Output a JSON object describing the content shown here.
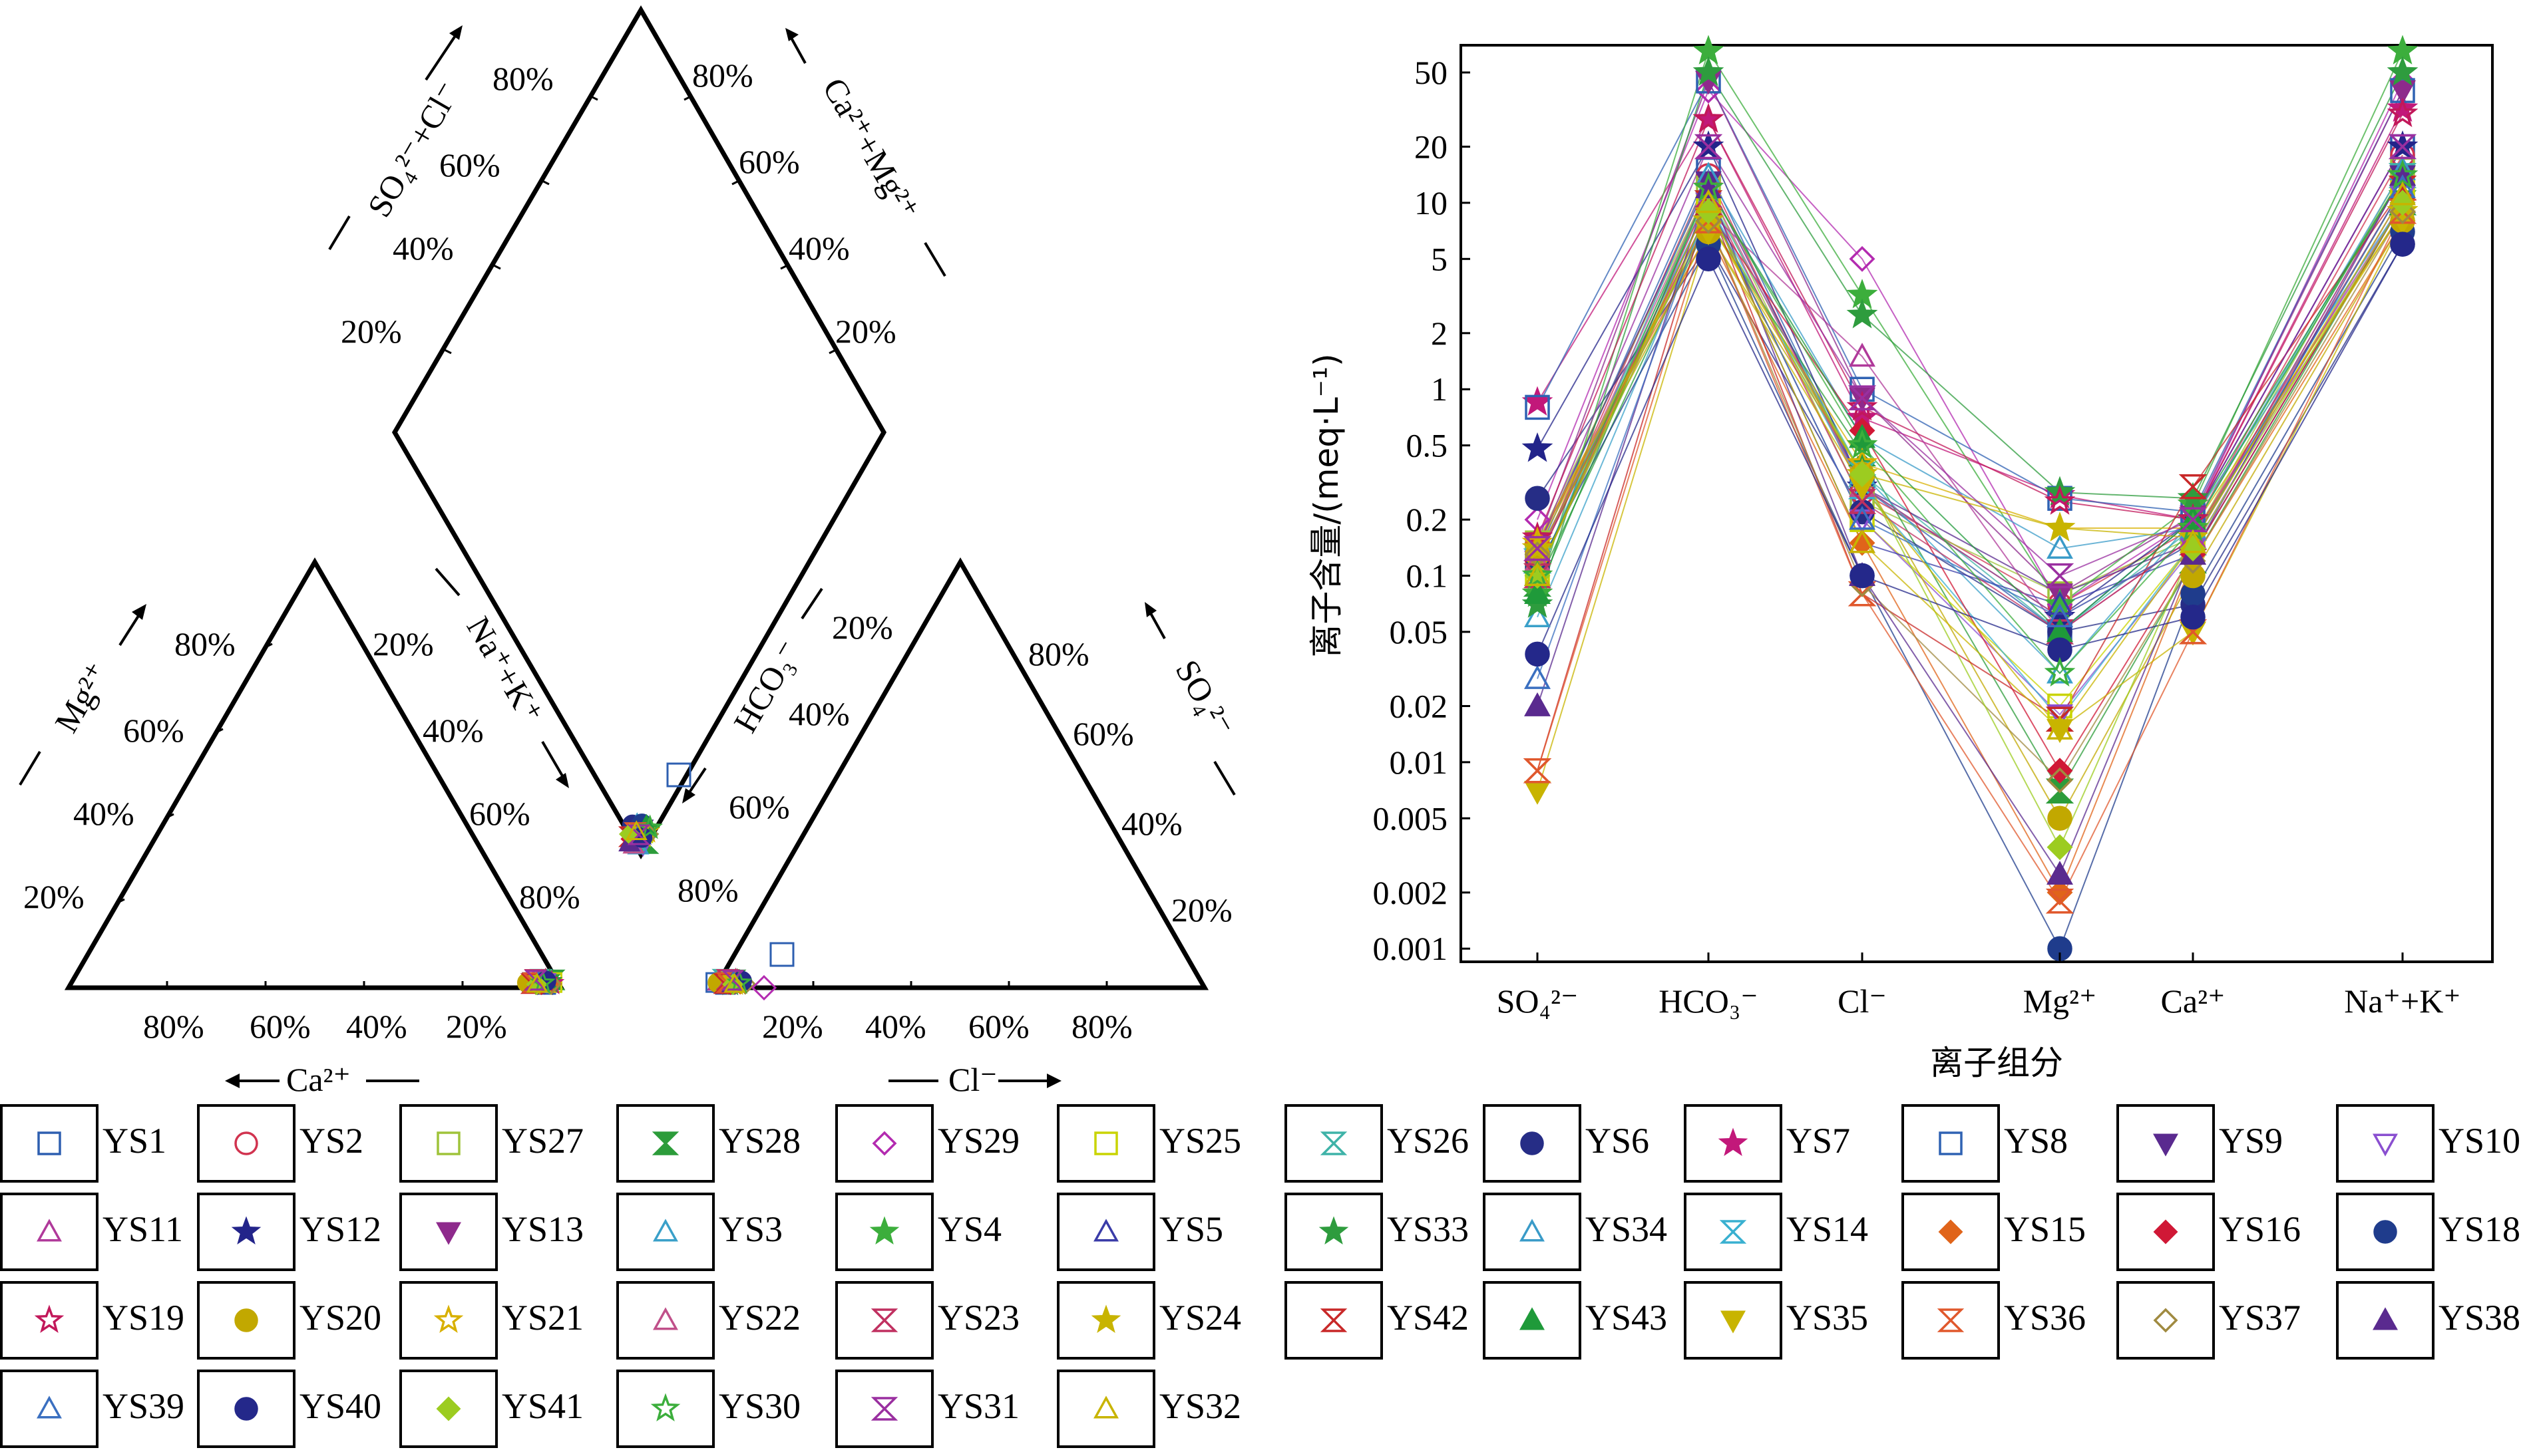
{
  "piper": {
    "diamond_left_label": "SO₄²⁻+Cl⁻",
    "diamond_right_label": "Ca²⁺+Mg²⁺",
    "left_axis_label": "Mg²⁺",
    "left_bottom_label": "Ca²⁺",
    "nak_label": "Na⁺+K⁺",
    "hco3_label": "HCO₃⁻",
    "right_axis_label": "SO₄²⁻",
    "right_bottom_label": "Cl⁻",
    "pct_80": "80%",
    "pct_60": "60%",
    "pct_40": "40%",
    "pct_20": "20%"
  },
  "chart_data": {
    "type": "line",
    "title": "",
    "xlabel": "离子组分",
    "ylabel": "离子含量/(meq·L⁻¹)",
    "y_scale": "log",
    "ylim": [
      0.001,
      70
    ],
    "y_ticks": [
      "50",
      "20",
      "10",
      "5",
      "2",
      "1",
      "0.5",
      "0.2",
      "0.1",
      "0.05",
      "0.02",
      "0.01",
      "0.005",
      "0.002",
      "0.001"
    ],
    "categories": [
      "SO₄²⁻",
      "HCO₃⁻",
      "Cl⁻",
      "Mg²⁺",
      "Ca²⁺",
      "Na⁺+K⁺"
    ],
    "grid": false,
    "series": [
      {
        "name": "YS1",
        "values": [
          0.13,
          15,
          0.3,
          0.05,
          0.2,
          20
        ]
      },
      {
        "name": "YS2",
        "values": [
          0.12,
          14,
          0.28,
          0.07,
          0.18,
          18
        ]
      },
      {
        "name": "YS27",
        "values": [
          0.15,
          12,
          0.25,
          0.08,
          0.16,
          15
        ]
      },
      {
        "name": "YS28",
        "values": [
          0.09,
          8,
          0.45,
          0.007,
          0.12,
          10
        ]
      },
      {
        "name": "YS29",
        "values": [
          0.2,
          40,
          5,
          0.07,
          0.2,
          45
        ]
      },
      {
        "name": "YS25",
        "values": [
          0.1,
          10,
          0.2,
          0.02,
          0.15,
          12
        ]
      },
      {
        "name": "YS26",
        "values": [
          0.12,
          11,
          0.35,
          0.05,
          0.18,
          14
        ]
      },
      {
        "name": "YS6",
        "values": [
          0.26,
          6,
          0.22,
          0.05,
          0.07,
          6
        ]
      },
      {
        "name": "YS7",
        "values": [
          0.85,
          28,
          0.7,
          0.27,
          0.2,
          32
        ]
      },
      {
        "name": "YS8",
        "values": [
          0.8,
          45,
          1,
          0.26,
          0.22,
          40
        ]
      },
      {
        "name": "YS9",
        "values": [
          0.14,
          13,
          0.3,
          0.08,
          0.15,
          14
        ]
      },
      {
        "name": "YS10",
        "values": [
          0.12,
          10,
          0.2,
          0.018,
          0.14,
          11
        ]
      },
      {
        "name": "YS11",
        "values": [
          0.1,
          9,
          1.5,
          0.05,
          0.16,
          10
        ]
      },
      {
        "name": "YS12",
        "values": [
          0.48,
          20,
          0.3,
          0.06,
          0.2,
          20
        ]
      },
      {
        "name": "YS13",
        "values": [
          0.15,
          45,
          0.9,
          0.08,
          0.21,
          40
        ]
      },
      {
        "name": "YS3",
        "values": [
          0.06,
          9,
          0.35,
          0.03,
          0.2,
          10
        ]
      },
      {
        "name": "YS4",
        "values": [
          0.08,
          65,
          3.2,
          0.07,
          0.24,
          65
        ]
      },
      {
        "name": "YS5",
        "values": [
          0.1,
          10,
          0.15,
          0.07,
          0.13,
          10
        ]
      },
      {
        "name": "YS33",
        "values": [
          0.07,
          50,
          2.5,
          0.28,
          0.26,
          50
        ]
      },
      {
        "name": "YS34",
        "values": [
          0.1,
          14,
          0.55,
          0.14,
          0.18,
          15
        ]
      },
      {
        "name": "YS14",
        "values": [
          0.12,
          10,
          0.3,
          0.017,
          0.15,
          12
        ]
      },
      {
        "name": "YS15",
        "values": [
          0.15,
          7,
          0.15,
          0.002,
          0.12,
          8
        ]
      },
      {
        "name": "YS16",
        "values": [
          0.12,
          9,
          0.6,
          0.009,
          0.13,
          10
        ]
      },
      {
        "name": "YS18",
        "values": [
          0.11,
          6,
          0.1,
          0.001,
          0.08,
          7
        ]
      },
      {
        "name": "YS19",
        "values": [
          0.16,
          28,
          0.8,
          0.25,
          0.2,
          30
        ]
      },
      {
        "name": "YS20",
        "values": [
          0.13,
          7,
          0.35,
          0.005,
          0.1,
          8
        ]
      },
      {
        "name": "YS21",
        "values": [
          0.15,
          8,
          0.4,
          0.18,
          0.18,
          9
        ]
      },
      {
        "name": "YS22",
        "values": [
          0.12,
          12,
          0.3,
          0.06,
          0.15,
          14
        ]
      },
      {
        "name": "YS23",
        "values": [
          0.1,
          11,
          0.25,
          0.05,
          0.16,
          12
        ]
      },
      {
        "name": "YS24",
        "values": [
          0.14,
          8,
          0.35,
          0.18,
          0.16,
          9
        ]
      },
      {
        "name": "YS42",
        "values": [
          0.009,
          10,
          0.08,
          0.017,
          0.3,
          12
        ]
      },
      {
        "name": "YS43",
        "values": [
          0.08,
          12,
          0.55,
          0.05,
          0.2,
          14
        ]
      },
      {
        "name": "YS35",
        "values": [
          0.007,
          7,
          0.3,
          0.015,
          0.05,
          8
        ]
      },
      {
        "name": "YS36",
        "values": [
          0.009,
          8,
          0.08,
          0.0018,
          0.05,
          9
        ]
      },
      {
        "name": "YS37",
        "values": [
          0.13,
          8,
          0.09,
          0.008,
          0.12,
          9
        ]
      },
      {
        "name": "YS38",
        "values": [
          0.02,
          12,
          0.1,
          0.0025,
          0.13,
          14
        ]
      },
      {
        "name": "YS39",
        "values": [
          0.028,
          10,
          0.2,
          0.06,
          0.15,
          12
        ]
      },
      {
        "name": "YS40",
        "values": [
          0.038,
          5,
          0.1,
          0.04,
          0.06,
          6
        ]
      },
      {
        "name": "YS41",
        "values": [
          0.1,
          9,
          0.35,
          0.0035,
          0.14,
          10
        ]
      },
      {
        "name": "YS30",
        "values": [
          0.1,
          12,
          0.5,
          0.03,
          0.18,
          14
        ]
      },
      {
        "name": "YS31",
        "values": [
          0.14,
          20,
          0.9,
          0.1,
          0.2,
          20
        ]
      },
      {
        "name": "YS32",
        "values": [
          0.1,
          10,
          0.15,
          0.015,
          0.15,
          11
        ]
      }
    ]
  },
  "legend": [
    {
      "name": "YS1",
      "shape": "square",
      "color": "#2e5fb0",
      "filled": false
    },
    {
      "name": "YS2",
      "shape": "circle",
      "color": "#d1334f",
      "filled": false
    },
    {
      "name": "YS27",
      "shape": "square",
      "color": "#9fc33a",
      "filled": false
    },
    {
      "name": "YS28",
      "shape": "hourglass",
      "color": "#2c9c3a",
      "filled": true
    },
    {
      "name": "YS29",
      "shape": "diamond",
      "color": "#b32bb0",
      "filled": false
    },
    {
      "name": "YS25",
      "shape": "square",
      "color": "#c9d400",
      "filled": false
    },
    {
      "name": "YS26",
      "shape": "hourglass",
      "color": "#3fb3a8",
      "filled": false
    },
    {
      "name": "YS6",
      "shape": "circle",
      "color": "#262d86",
      "filled": true
    },
    {
      "name": "YS7",
      "shape": "star",
      "color": "#c2187a",
      "filled": true
    },
    {
      "name": "YS8",
      "shape": "square",
      "color": "#2f62b3",
      "filled": false
    },
    {
      "name": "YS9",
      "shape": "tri-down",
      "color": "#5a2a8f",
      "filled": true
    },
    {
      "name": "YS10",
      "shape": "tri-down",
      "color": "#8a4fd0",
      "filled": false
    },
    {
      "name": "YS11",
      "shape": "tri-up",
      "color": "#b0399a",
      "filled": false
    },
    {
      "name": "YS12",
      "shape": "star",
      "color": "#23248a",
      "filled": true
    },
    {
      "name": "YS13",
      "shape": "tri-down",
      "color": "#8e2a8c",
      "filled": true
    },
    {
      "name": "YS3",
      "shape": "tri-up",
      "color": "#3aa0c9",
      "filled": false
    },
    {
      "name": "YS4",
      "shape": "star",
      "color": "#3cae3c",
      "filled": true
    },
    {
      "name": "YS5",
      "shape": "tri-up",
      "color": "#3a3ca8",
      "filled": false
    },
    {
      "name": "YS33",
      "shape": "star",
      "color": "#2e9c3e",
      "filled": true
    },
    {
      "name": "YS34",
      "shape": "tri-up",
      "color": "#3a9bc8",
      "filled": false
    },
    {
      "name": "YS14",
      "shape": "hourglass",
      "color": "#39b0d0",
      "filled": false
    },
    {
      "name": "YS15",
      "shape": "diamond",
      "color": "#e0641a",
      "filled": true
    },
    {
      "name": "YS16",
      "shape": "diamond",
      "color": "#d01836",
      "filled": true
    },
    {
      "name": "YS18",
      "shape": "circle",
      "color": "#1f3c8c",
      "filled": true
    },
    {
      "name": "YS19",
      "shape": "star",
      "color": "#c2185a",
      "filled": false
    },
    {
      "name": "YS20",
      "shape": "circle",
      "color": "#c2a800",
      "filled": true
    },
    {
      "name": "YS21",
      "shape": "star",
      "color": "#d8b000",
      "filled": false
    },
    {
      "name": "YS22",
      "shape": "tri-up",
      "color": "#c0508a",
      "filled": false
    },
    {
      "name": "YS23",
      "shape": "hourglass",
      "color": "#c03060",
      "filled": false
    },
    {
      "name": "YS24",
      "shape": "star",
      "color": "#c8b400",
      "filled": true
    },
    {
      "name": "YS42",
      "shape": "hourglass",
      "color": "#c82828",
      "filled": false
    },
    {
      "name": "YS43",
      "shape": "tri-up",
      "color": "#1f9a3a",
      "filled": true
    },
    {
      "name": "YS35",
      "shape": "tri-down",
      "color": "#c8b400",
      "filled": true
    },
    {
      "name": "YS36",
      "shape": "hourglass",
      "color": "#e0582c",
      "filled": false
    },
    {
      "name": "YS37",
      "shape": "diamond",
      "color": "#a08a40",
      "filled": false
    },
    {
      "name": "YS38",
      "shape": "tri-up",
      "color": "#5a2a8f",
      "filled": true
    },
    {
      "name": "YS39",
      "shape": "tri-up",
      "color": "#3a6fc0",
      "filled": false
    },
    {
      "name": "YS40",
      "shape": "circle",
      "color": "#24288a",
      "filled": true
    },
    {
      "name": "YS41",
      "shape": "diamond",
      "color": "#9ccc20",
      "filled": true
    },
    {
      "name": "YS30",
      "shape": "star",
      "color": "#3cae3c",
      "filled": false
    },
    {
      "name": "YS31",
      "shape": "hourglass",
      "color": "#9a2fa0",
      "filled": false
    },
    {
      "name": "YS32",
      "shape": "tri-up",
      "color": "#c8b400",
      "filled": false
    }
  ]
}
